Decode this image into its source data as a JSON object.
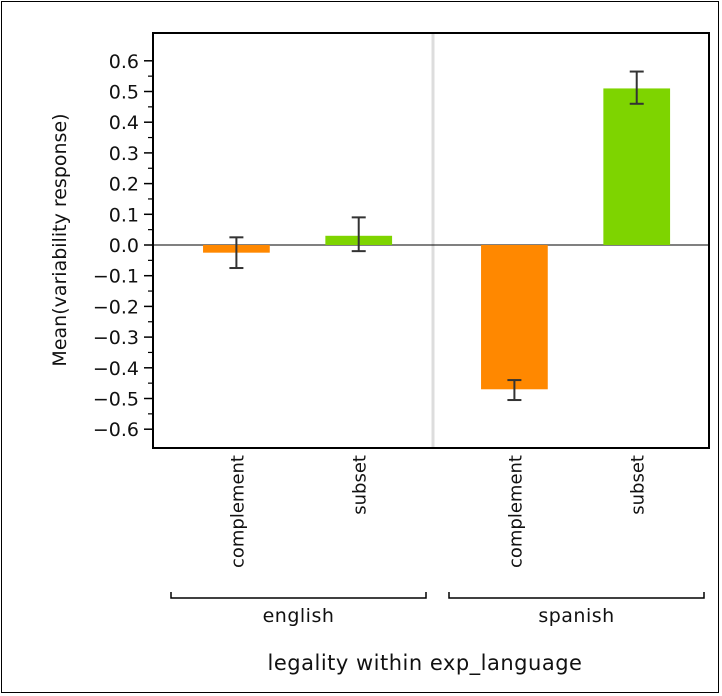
{
  "chart_data": {
    "type": "bar",
    "xlabel": "legality within exp_language",
    "ylabel": "Mean(variability response)",
    "ylim": [
      -0.65,
      0.7
    ],
    "yticks": [
      0.6,
      0.5,
      0.4,
      0.3,
      0.2,
      0.1,
      0.0,
      -0.1,
      -0.2,
      -0.3,
      -0.4,
      -0.5,
      -0.6
    ],
    "ytick_labels": [
      "0.6",
      "0.5",
      "0.4",
      "0.3",
      "0.2",
      "0.1",
      "0.0",
      "−0.1",
      "−0.2",
      "−0.3",
      "−0.4",
      "−0.5",
      "−0.6"
    ],
    "groups": [
      {
        "name": "english",
        "bars": [
          {
            "category": "complement",
            "value": -0.025,
            "err_low": -0.075,
            "err_high": 0.025,
            "color": "#ff8800"
          },
          {
            "category": "subset",
            "value": 0.03,
            "err_low": -0.02,
            "err_high": 0.09,
            "color": "#7ed400"
          }
        ]
      },
      {
        "name": "spanish",
        "bars": [
          {
            "category": "complement",
            "value": -0.47,
            "err_low": -0.505,
            "err_high": -0.44,
            "color": "#ff8800"
          },
          {
            "category": "subset",
            "value": 0.51,
            "err_low": 0.46,
            "err_high": 0.565,
            "color": "#7ed400"
          }
        ]
      }
    ],
    "grid": false,
    "legend": "none"
  }
}
